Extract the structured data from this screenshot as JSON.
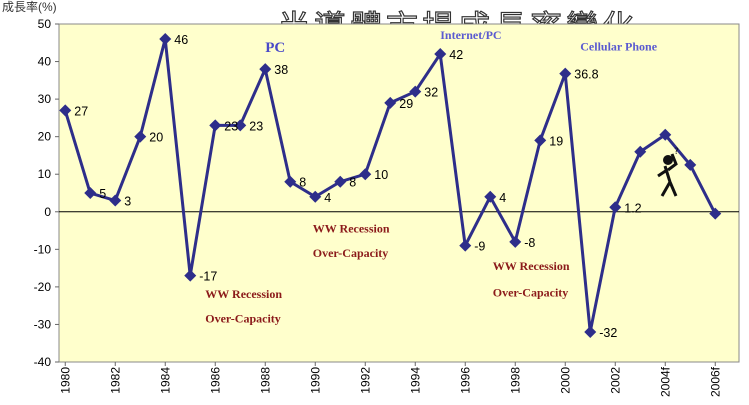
{
  "chart_data": {
    "type": "line",
    "title": "半導體市場成長率變化",
    "ylabel": "成長率(%)",
    "ylim": [
      -40,
      50
    ],
    "yticks": [
      50,
      40,
      30,
      20,
      10,
      0,
      -10,
      -20,
      -30,
      -40
    ],
    "x_tick_labels": [
      "1980",
      "1982",
      "1984",
      "1986",
      "1988",
      "1990",
      "1992",
      "1994",
      "1996",
      "1998",
      "2000",
      "2002",
      "2004f",
      "2006f"
    ],
    "x": [
      1980,
      1981,
      1982,
      1983,
      1984,
      1985,
      1986,
      1987,
      1988,
      1989,
      1990,
      1991,
      1992,
      1993,
      1994,
      1995,
      1996,
      1997,
      1998,
      1999,
      2000,
      2001,
      2002,
      2003,
      2004,
      2005,
      2006
    ],
    "series": [
      {
        "values": [
          27,
          5,
          3,
          20,
          46,
          -17,
          23,
          23,
          38,
          8,
          4,
          8,
          10,
          29,
          32,
          42,
          -9,
          4,
          -8,
          19,
          36.8,
          -32,
          1.2,
          16,
          20.5,
          12.5,
          -0.5
        ],
        "labels": [
          "27",
          "5",
          "3",
          "20",
          "46",
          "-17",
          "23",
          "23",
          "38",
          "8",
          "4",
          "8",
          "10",
          "29",
          "32",
          "42",
          "-9",
          "4",
          "-8",
          "19",
          "36.8",
          "-32",
          "1.2",
          "",
          "",
          "",
          ""
        ]
      }
    ],
    "grid": false,
    "colors": {
      "line": "#2e2e8a",
      "marker": "#2e2e8a",
      "plot_bg": "#ffffcc"
    },
    "annotations": [
      {
        "text": "PC",
        "x": 1988,
        "y": 42.5,
        "style": "blue-lg"
      },
      {
        "text": "Internet/PC",
        "x": 1995,
        "y": 46,
        "style": "blue"
      },
      {
        "text": "Cellular Phone",
        "x": 2000.6,
        "y": 43,
        "style": "blue"
      },
      {
        "text": "WW Recession",
        "x": 1985.6,
        "y": -23,
        "style": "red"
      },
      {
        "text": "Over-Capacity",
        "x": 1985.6,
        "y": -29.5,
        "style": "red"
      },
      {
        "text": "WW Recession",
        "x": 1989.9,
        "y": -5.5,
        "style": "red"
      },
      {
        "text": "Over-Capacity",
        "x": 1989.9,
        "y": -12,
        "style": "red"
      },
      {
        "text": "WW Recession",
        "x": 1997.1,
        "y": -15.5,
        "style": "red"
      },
      {
        "text": "Over-Capacity",
        "x": 1997.1,
        "y": -22.5,
        "style": "red"
      }
    ]
  }
}
